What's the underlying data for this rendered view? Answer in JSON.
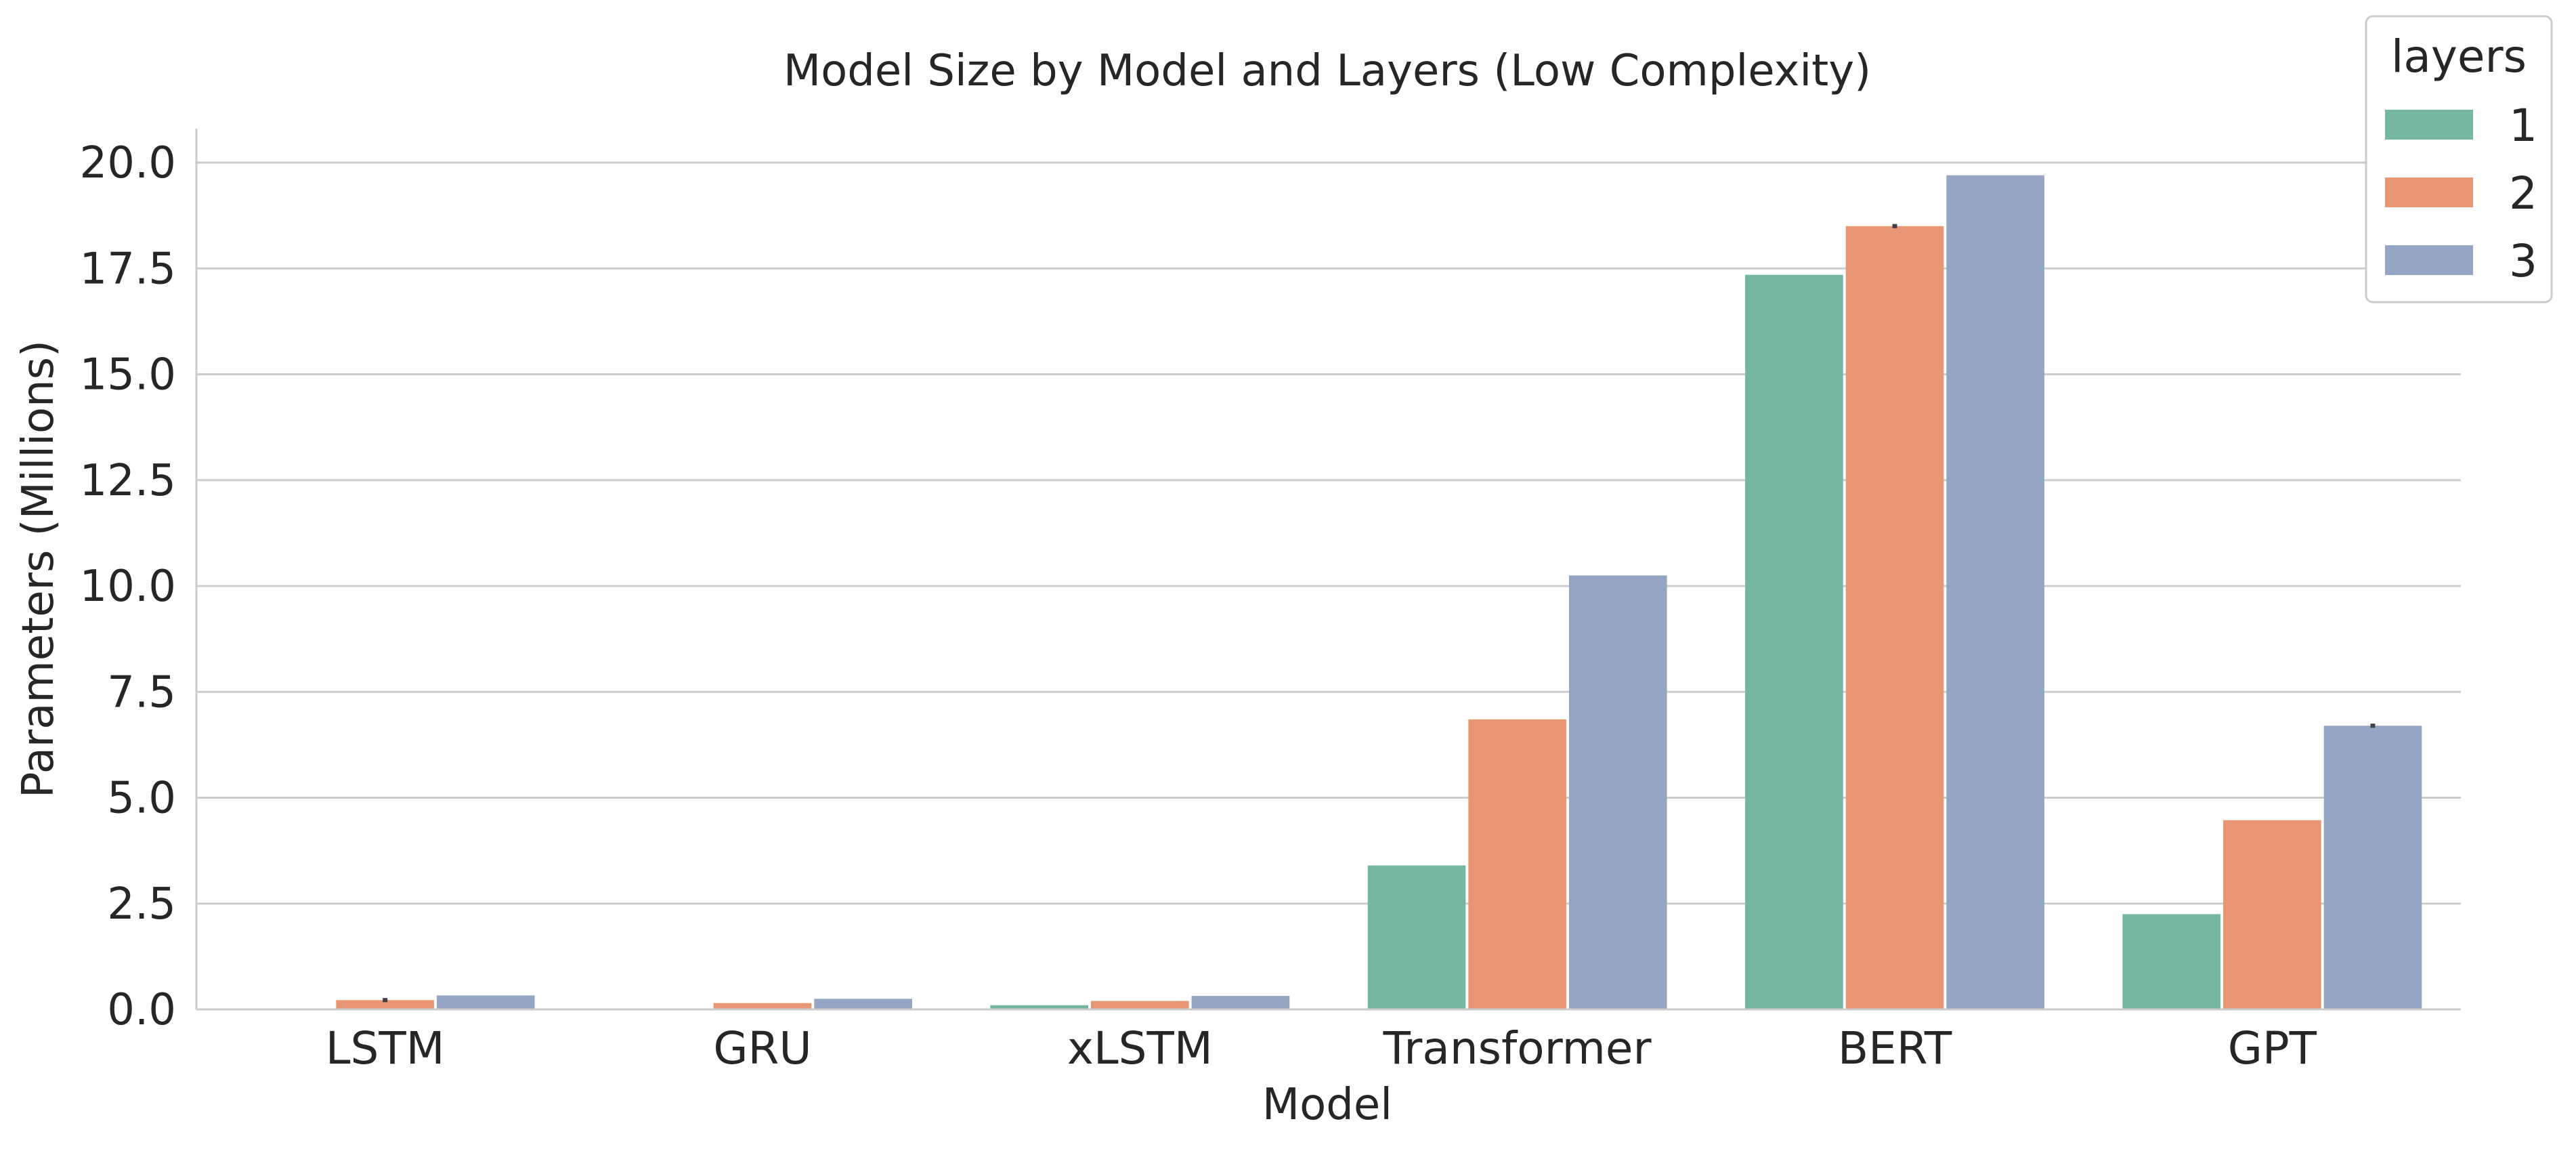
{
  "chart_data": {
    "type": "bar",
    "title": "Model Size by Model and Layers (Low Complexity)",
    "xlabel": "Model",
    "ylabel": "Parameters (Millions)",
    "categories": [
      "LSTM",
      "GRU",
      "xLSTM",
      "Transformer",
      "BERT",
      "GPT"
    ],
    "ylim": [
      0,
      20.8
    ],
    "yticks": [
      "0.0",
      "2.5",
      "5.0",
      "7.5",
      "10.0",
      "12.5",
      "15.0",
      "17.5",
      "20.0"
    ],
    "grid": "horizontal",
    "legend": {
      "title": "layers",
      "placement": "top-right"
    },
    "series": [
      {
        "name": "1",
        "color": "#75b6a0",
        "values": [
          0.0,
          0.0,
          0.1,
          3.4,
          17.35,
          2.25
        ],
        "err": [
          0,
          0,
          0,
          0,
          0,
          0
        ]
      },
      {
        "name": "2",
        "color": "#e89674",
        "values": [
          0.22,
          0.15,
          0.2,
          6.85,
          18.5,
          4.47
        ],
        "err": [
          0.05,
          0,
          0,
          0,
          0.05,
          0
        ]
      },
      {
        "name": "3",
        "color": "#95a5c4",
        "values": [
          0.33,
          0.25,
          0.32,
          10.25,
          19.7,
          6.7
        ],
        "err": [
          0,
          0,
          0,
          0,
          0,
          0.05
        ]
      }
    ]
  }
}
